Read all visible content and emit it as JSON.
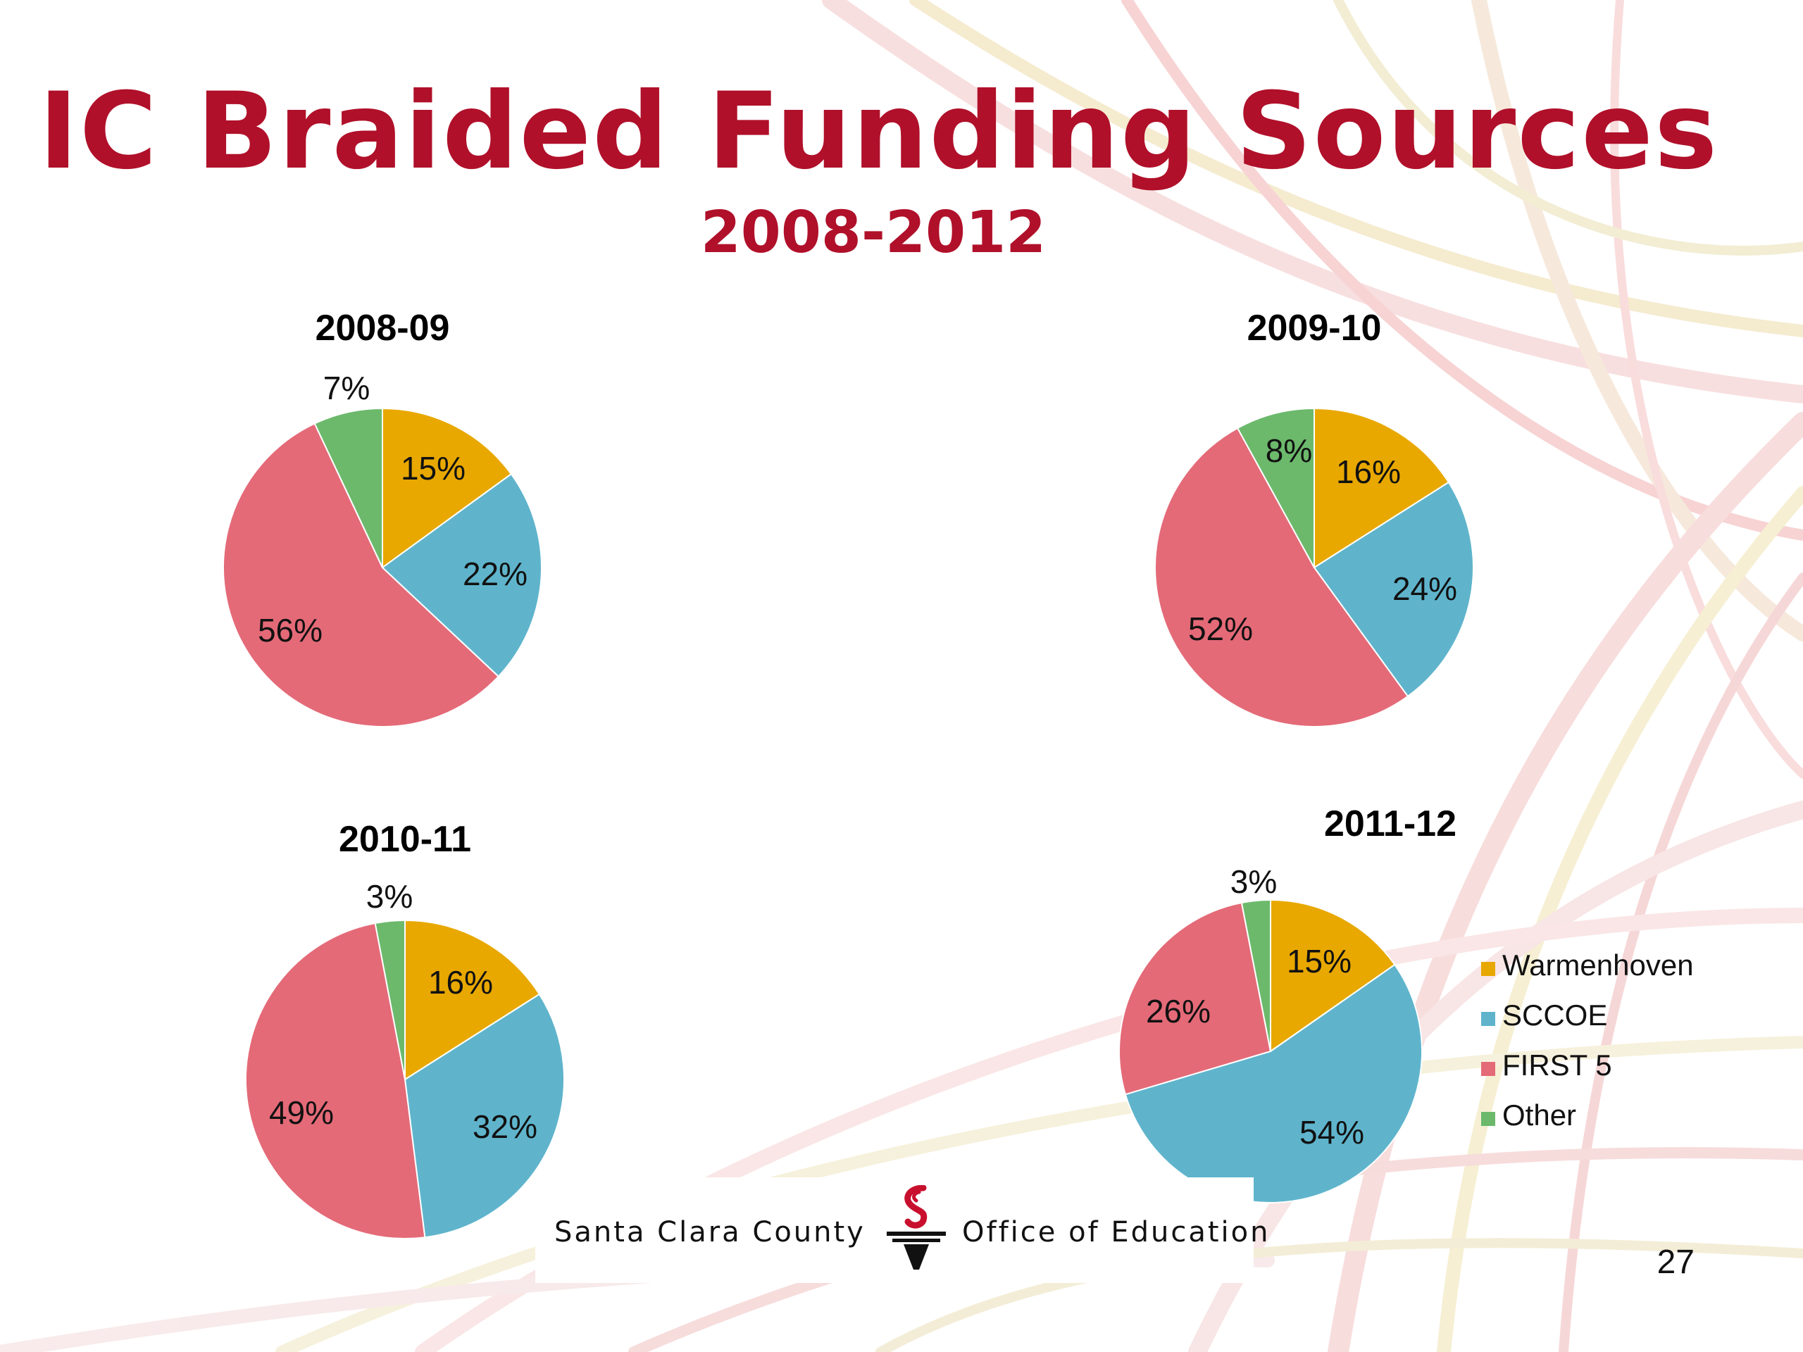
{
  "slide": {
    "title": "IC Braided Funding Sources",
    "subtitle": "2008-2012",
    "page_number": "27"
  },
  "footer": {
    "left_text": "Santa Clara County",
    "right_text": "Office of Education"
  },
  "colors": {
    "title": "#b0102a",
    "Warmenhoven": "#e8a800",
    "SCCOE": "#5fb4cc",
    "FIRST 5": "#e46a78",
    "Other": "#6cb96c"
  },
  "chart_data": [
    {
      "type": "pie",
      "title": "2008-09",
      "labels": [
        "Warmenhoven",
        "SCCOE",
        "FIRST 5",
        "Other"
      ],
      "values": [
        15,
        22,
        56,
        7
      ],
      "value_labels": [
        "15%",
        "22%",
        "56%",
        "7%"
      ]
    },
    {
      "type": "pie",
      "title": "2009-10",
      "labels": [
        "Warmenhoven",
        "SCCOE",
        "FIRST 5",
        "Other"
      ],
      "values": [
        16,
        24,
        52,
        8
      ],
      "value_labels": [
        "16%",
        "24%",
        "52%",
        "8%"
      ]
    },
    {
      "type": "pie",
      "title": "2010-11",
      "labels": [
        "Warmenhoven",
        "SCCOE",
        "FIRST 5",
        "Other"
      ],
      "values": [
        16,
        32,
        49,
        3
      ],
      "value_labels": [
        "16%",
        "32%",
        "49%",
        "3%"
      ]
    },
    {
      "type": "pie",
      "title": "2011-12",
      "labels": [
        "Warmenhoven",
        "SCCOE",
        "FIRST 5",
        "Other"
      ],
      "values": [
        15,
        54,
        26,
        3
      ],
      "value_labels": [
        "15%",
        "54%",
        "26%",
        "3%"
      ],
      "legend": {
        "position": "right",
        "entries": [
          "Warmenhoven",
          "SCCOE",
          "FIRST 5",
          "Other"
        ]
      }
    }
  ]
}
